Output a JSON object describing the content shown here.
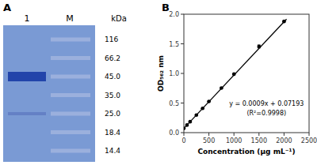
{
  "chart_data": [
    {
      "type": "gel",
      "title": "A",
      "categories": [
        "116",
        "66.2",
        "45.0",
        "35.0",
        "25.0",
        "18.4",
        "14.4"
      ],
      "annotations": [
        "1",
        "M",
        "kDa"
      ]
    },
    {
      "type": "scatter",
      "title": "B",
      "xlabel": "Concentration (μg mL⁻¹)",
      "ylabel": "OD₅₆₂ nm",
      "xlim": [
        0,
        2500
      ],
      "ylim": [
        0,
        2
      ],
      "xticks": [
        0,
        500,
        1000,
        1500,
        2000,
        2500
      ],
      "yticks": [
        {
          "value": 0,
          "label": "0.0"
        },
        0.5,
        {
          "value": 1,
          "label": "1.0"
        },
        1.5,
        {
          "value": 2,
          "label": "2.0"
        }
      ],
      "annotations": [
        "y = 0.0009x + 0.07193",
        "(R²=0.9998)"
      ],
      "series": [
        {
          "type": "scatter",
          "marker": "circle",
          "color": "black",
          "x": [
            0,
            62.5,
            125,
            250,
            375,
            500,
            750,
            1000,
            1500,
            2000
          ],
          "values": [
            0.072,
            0.128,
            0.185,
            0.297,
            0.41,
            0.527,
            0.753,
            0.988,
            1.455,
            1.878
          ],
          "errors": [
            0.002,
            0.003,
            0.003,
            0.004,
            0.004,
            0.005,
            0.005,
            0.006,
            0.025,
            0.01
          ]
        },
        {
          "type": "line",
          "color": "black",
          "line_style": "solid",
          "x": [
            0,
            2050
          ],
          "values": [
            0.07193,
            1.91693
          ]
        }
      ]
    }
  ]
}
